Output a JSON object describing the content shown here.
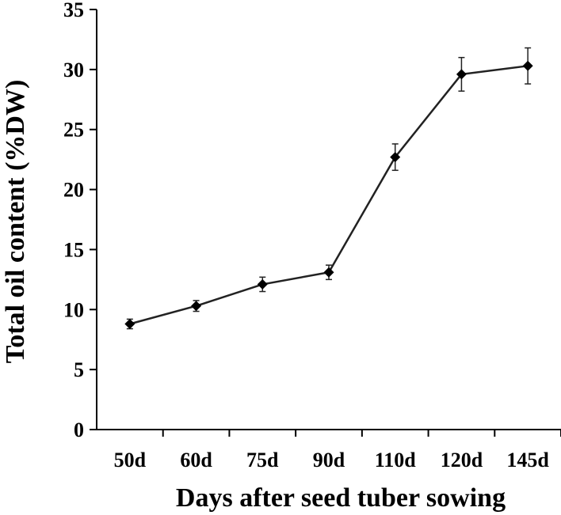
{
  "chart_data": {
    "type": "line",
    "title": "",
    "xlabel": "Days after seed tuber sowing",
    "ylabel": "Total oil content (%DW)",
    "categories": [
      "50d",
      "60d",
      "75d",
      "90d",
      "110d",
      "120d",
      "145d"
    ],
    "series": [
      {
        "values": [
          8.8,
          10.3,
          12.1,
          13.1,
          22.7,
          29.6,
          30.3
        ],
        "errors": [
          0.4,
          0.45,
          0.6,
          0.6,
          1.1,
          1.4,
          1.5
        ],
        "marker": "diamond",
        "color": "#222222"
      }
    ],
    "ylim": [
      0,
      35
    ],
    "yticks": [
      0,
      5,
      10,
      15,
      20,
      25,
      30,
      35
    ],
    "grid": false,
    "legend": "none"
  }
}
